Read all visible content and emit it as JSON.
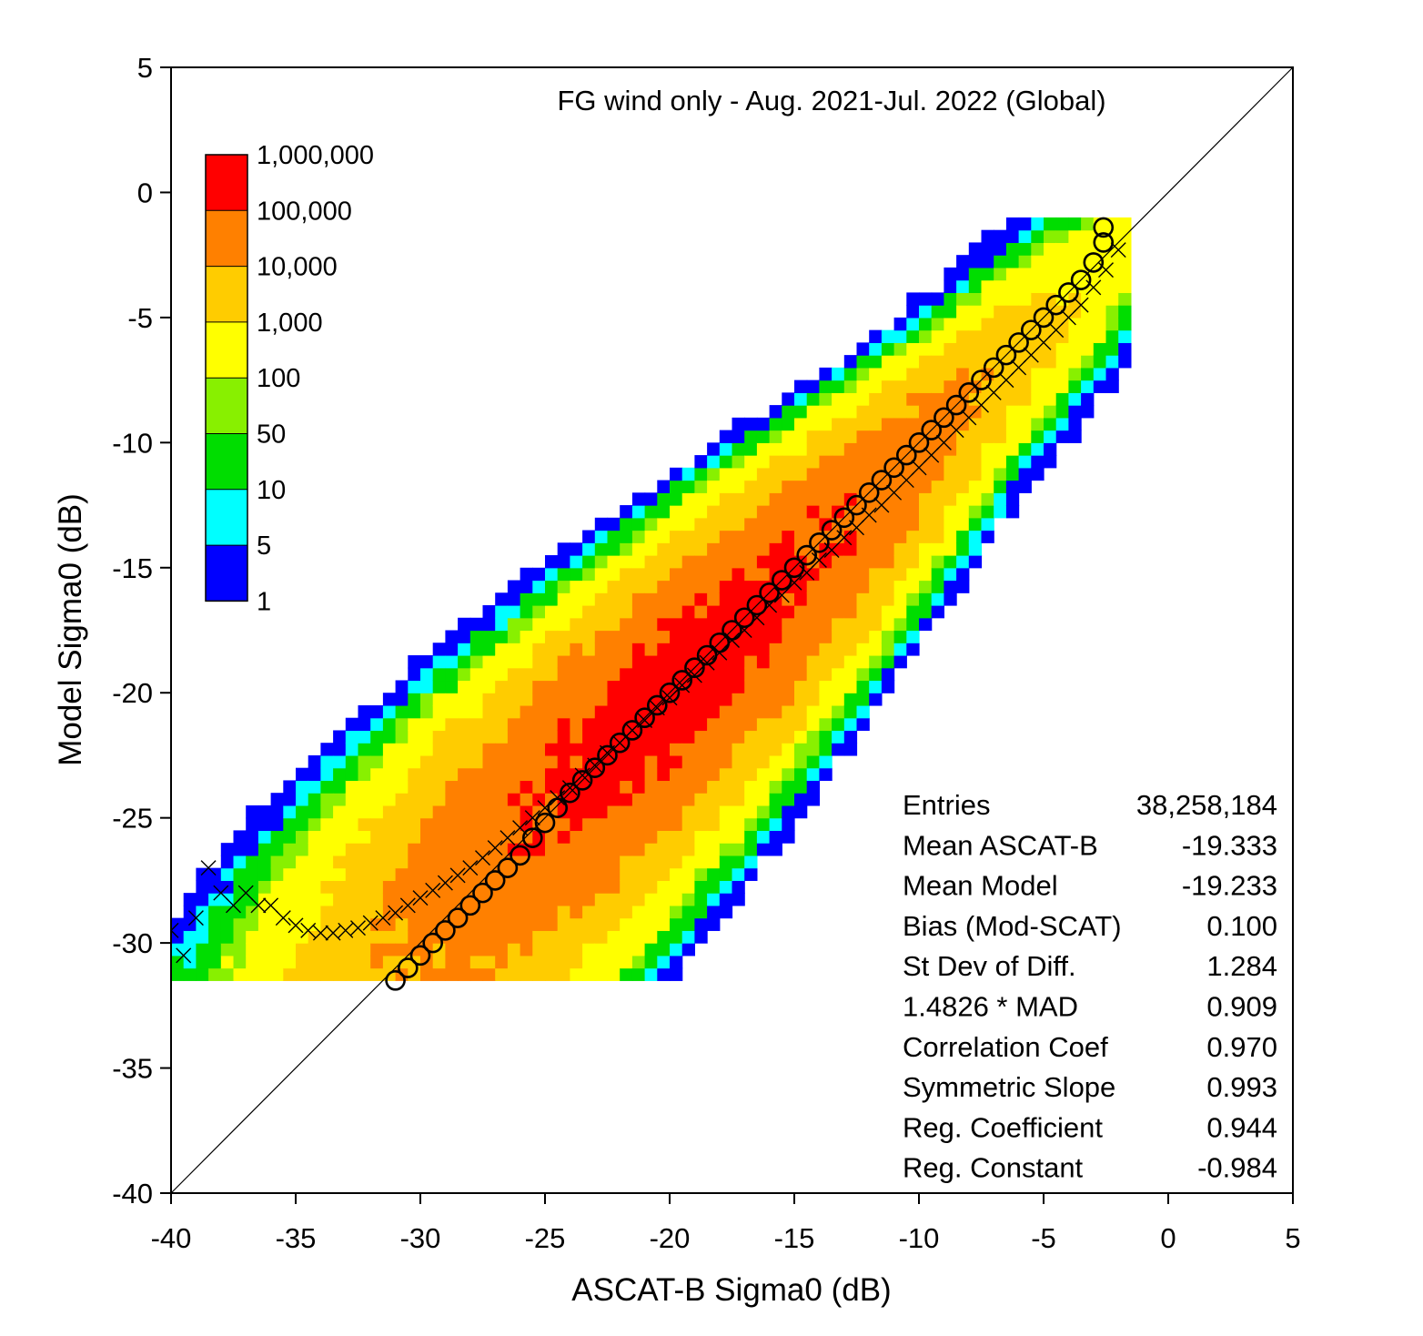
{
  "chart_data": {
    "type": "heatmap",
    "title": "FG wind only -  Aug. 2021-Jul. 2022 (Global)",
    "xlabel": "ASCAT-B Sigma0 (dB)",
    "ylabel": "Model Sigma0 (dB)",
    "xlim": [
      -40,
      5
    ],
    "ylim": [
      -40,
      5
    ],
    "x_ticks": [
      -40,
      -35,
      -30,
      -25,
      -20,
      -15,
      -10,
      -5,
      0,
      5
    ],
    "y_ticks": [
      5,
      0,
      -5,
      -10,
      -15,
      -20,
      -25,
      -30,
      -35,
      -40
    ],
    "x_tick_labels": [
      "-40",
      "-35",
      "-30",
      "-25",
      "-20",
      "-15",
      "-10",
      "-5",
      "0",
      "5"
    ],
    "y_tick_labels": [
      "5",
      "0",
      "-5",
      "-10",
      "-15",
      "-20",
      "-25",
      "-30",
      "-35",
      "-40"
    ],
    "bin_size_db": 0.5,
    "grid": false,
    "reference_line": {
      "from": [
        -40,
        -40
      ],
      "to": [
        5,
        5
      ]
    },
    "colorbar": {
      "placement": "top-left",
      "labels": [
        "1,000,000",
        "100,000",
        "10,000",
        "1,000",
        "100",
        "50",
        "10",
        "5",
        "1"
      ],
      "levels": [
        {
          "min": 100000,
          "color": "#ff0000"
        },
        {
          "min": 10000,
          "color": "#ff8000"
        },
        {
          "min": 1000,
          "color": "#ffcc00"
        },
        {
          "min": 100,
          "color": "#ffff00"
        },
        {
          "min": 50,
          "color": "#88f000"
        },
        {
          "min": 10,
          "color": "#00dd00"
        },
        {
          "min": 5,
          "color": "#00ffff"
        },
        {
          "min": 1,
          "color": "#0000ff"
        }
      ]
    },
    "series": [
      {
        "marker": "circle",
        "x": [
          -31.0,
          -30.5,
          -30.0,
          -29.5,
          -29.0,
          -28.5,
          -28.0,
          -27.5,
          -27.0,
          -26.5,
          -26.0,
          -25.5,
          -25.0,
          -24.5,
          -24.0,
          -23.5,
          -23.0,
          -22.5,
          -22.0,
          -21.5,
          -21.0,
          -20.5,
          -20.0,
          -19.5,
          -19.0,
          -18.5,
          -18.0,
          -17.5,
          -17.0,
          -16.5,
          -16.0,
          -15.5,
          -15.0,
          -14.5,
          -14.0,
          -13.5,
          -13.0,
          -12.5,
          -12.0,
          -11.5,
          -11.0,
          -10.5,
          -10.0,
          -9.5,
          -9.0,
          -8.5,
          -8.0,
          -7.5,
          -7.0,
          -6.5,
          -6.0,
          -5.5,
          -5.0,
          -4.5,
          -4.0,
          -3.5,
          -3.0,
          -2.6,
          -2.6
        ],
        "y": [
          -31.5,
          -31.0,
          -30.5,
          -30.0,
          -29.5,
          -29.0,
          -28.5,
          -28.0,
          -27.5,
          -27.0,
          -26.5,
          -25.8,
          -25.2,
          -24.6,
          -24.0,
          -23.5,
          -23.0,
          -22.5,
          -22.0,
          -21.5,
          -21.0,
          -20.5,
          -20.0,
          -19.5,
          -19.0,
          -18.5,
          -18.0,
          -17.5,
          -17.0,
          -16.5,
          -16.0,
          -15.5,
          -15.0,
          -14.5,
          -14.0,
          -13.5,
          -13.0,
          -12.5,
          -12.0,
          -11.5,
          -11.0,
          -10.5,
          -10.0,
          -9.5,
          -9.0,
          -8.5,
          -8.0,
          -7.5,
          -7.0,
          -6.5,
          -6.0,
          -5.5,
          -5.0,
          -4.5,
          -4.0,
          -3.5,
          -2.8,
          -2.0,
          -1.4
        ]
      },
      {
        "marker": "x",
        "x": [
          -40.0,
          -39.5,
          -39.0,
          -38.5,
          -38.0,
          -37.5,
          -37.0,
          -36.5,
          -36.0,
          -35.5,
          -35.0,
          -34.5,
          -34.0,
          -33.5,
          -33.0,
          -32.5,
          -32.0,
          -31.5,
          -31.0,
          -30.5,
          -30.0,
          -29.5,
          -29.0,
          -28.5,
          -28.0,
          -27.5,
          -27.0,
          -26.5,
          -26.0,
          -25.5,
          -25.0,
          -24.5,
          -24.0,
          -23.5,
          -23.0,
          -22.5,
          -22.0,
          -21.5,
          -21.0,
          -20.5,
          -20.0,
          -19.5,
          -19.0,
          -18.5,
          -18.0,
          -17.5,
          -17.0,
          -16.5,
          -16.0,
          -15.5,
          -15.0,
          -14.5,
          -14.0,
          -13.5,
          -13.0,
          -12.5,
          -12.0,
          -11.5,
          -11.0,
          -10.5,
          -10.0,
          -9.5,
          -9.0,
          -8.5,
          -8.0,
          -7.5,
          -7.0,
          -6.5,
          -6.0,
          -5.5,
          -5.0,
          -4.5,
          -4.0,
          -3.5,
          -3.0,
          -2.5,
          -2.0
        ],
        "y": [
          -29.5,
          -30.5,
          -29.0,
          -27.0,
          -28.0,
          -28.5,
          -28.0,
          -28.5,
          -28.5,
          -29.0,
          -29.3,
          -29.5,
          -29.6,
          -29.6,
          -29.5,
          -29.4,
          -29.2,
          -29.0,
          -28.8,
          -28.5,
          -28.2,
          -27.9,
          -27.6,
          -27.3,
          -27.0,
          -26.6,
          -26.2,
          -25.8,
          -25.4,
          -25.0,
          -24.6,
          -24.2,
          -23.8,
          -23.3,
          -22.9,
          -22.4,
          -22.0,
          -21.5,
          -21.1,
          -20.6,
          -20.2,
          -19.7,
          -19.3,
          -18.8,
          -18.4,
          -17.9,
          -17.5,
          -17.0,
          -16.5,
          -16.1,
          -15.6,
          -15.2,
          -14.7,
          -14.3,
          -13.8,
          -13.4,
          -12.9,
          -12.5,
          -12.0,
          -11.5,
          -11.0,
          -10.5,
          -10.0,
          -9.5,
          -9.0,
          -8.5,
          -8.0,
          -7.5,
          -7.0,
          -6.5,
          -6.0,
          -5.5,
          -5.0,
          -4.5,
          -3.8,
          -3.1,
          -2.3
        ]
      }
    ],
    "statistics": [
      {
        "label": "Entries",
        "value": "38,258,184"
      },
      {
        "label": "Mean ASCAT-B",
        "value": "-19.333"
      },
      {
        "label": "Mean Model",
        "value": "-19.233"
      },
      {
        "label": "Bias (Mod-SCAT)",
        "value": "0.100"
      },
      {
        "label": "St Dev of Diff.",
        "value": "1.284"
      },
      {
        "label": "1.4826 * MAD",
        "value": "0.909"
      },
      {
        "label": "Correlation Coef",
        "value": "0.970"
      },
      {
        "label": "Symmetric Slope",
        "value": "0.993"
      },
      {
        "label": "Reg. Coefficient",
        "value": "0.944"
      },
      {
        "label": "Reg. Constant",
        "value": "-0.984"
      }
    ]
  }
}
